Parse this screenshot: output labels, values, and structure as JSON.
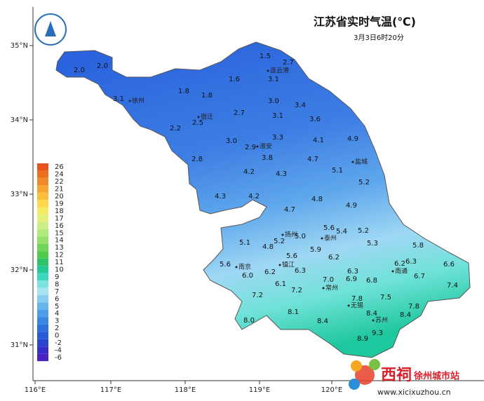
{
  "header": {
    "title": "江苏省实时气温(℃)",
    "subtitle": "3月3日6时20分"
  },
  "axes": {
    "lat": [
      "35°N",
      "34°N",
      "33°N",
      "32°N",
      "31°N"
    ],
    "lon": [
      "116°E",
      "117°E",
      "118°E",
      "119°E",
      "120°E"
    ]
  },
  "legend": {
    "levels": [
      {
        "label": "26",
        "color": "#e8531c"
      },
      {
        "label": "24",
        "color": "#ee6f22"
      },
      {
        "label": "22",
        "color": "#f38a2a"
      },
      {
        "label": "21",
        "color": "#f7a431"
      },
      {
        "label": "20",
        "color": "#fbbf3b"
      },
      {
        "label": "19",
        "color": "#fcd84a"
      },
      {
        "label": "18",
        "color": "#f5ea63"
      },
      {
        "label": "17",
        "color": "#e4f07a"
      },
      {
        "label": "16",
        "color": "#cdee86"
      },
      {
        "label": "15",
        "color": "#b3e87a"
      },
      {
        "label": "14",
        "color": "#95df6a"
      },
      {
        "label": "13",
        "color": "#72d55a"
      },
      {
        "label": "12",
        "color": "#4fcb4d"
      },
      {
        "label": "11",
        "color": "#31c36a"
      },
      {
        "label": "10",
        "color": "#22c896"
      },
      {
        "label": "9",
        "color": "#3fd7bf"
      },
      {
        "label": "8",
        "color": "#7ae3e0"
      },
      {
        "label": "7",
        "color": "#a6e4f3"
      },
      {
        "label": "6",
        "color": "#86cdf0"
      },
      {
        "label": "5",
        "color": "#66b6ec"
      },
      {
        "label": "4",
        "color": "#4d9ee8"
      },
      {
        "label": "3",
        "color": "#3a86e3"
      },
      {
        "label": "2",
        "color": "#2f70dd"
      },
      {
        "label": "0",
        "color": "#2a5bd6"
      },
      {
        "label": "-2",
        "color": "#2a45cf"
      },
      {
        "label": "-4",
        "color": "#3630c9"
      },
      {
        "label": "-6",
        "color": "#4a22c4"
      }
    ]
  },
  "cities": [
    "连云港",
    "徐州",
    "宿迁",
    "淮安",
    "盐城",
    "扬州",
    "泰州",
    "镇江",
    "南京",
    "常州",
    "无锡",
    "苏州",
    "南通"
  ],
  "stations": [
    "1.5",
    "2.7",
    "2.0",
    "2.0",
    "1.6",
    "3.1",
    "1.8",
    "1.8",
    "3.1",
    "3.0",
    "3.4",
    "2.7",
    "3.1",
    "3.6",
    "2.5",
    "2.2",
    "4.9",
    "3.3",
    "4.1",
    "3.0",
    "2.9",
    "3.8",
    "4.7",
    "2.8",
    "5.1",
    "4.2",
    "4.3",
    "5.2",
    "4.3",
    "4.2",
    "4.8",
    "4.9",
    "4.7",
    "5.6",
    "5.4",
    "5.2",
    "5.0",
    "5.2",
    "5.1",
    "5.3",
    "4.8",
    "5.8",
    "5.9",
    "5.6",
    "6.2",
    "6.2",
    "6.3",
    "6.6",
    "5.6",
    "6.0",
    "6.2",
    "6.3",
    "6.3",
    "6.9",
    "6.7",
    "7.0",
    "6.8",
    "6.1",
    "7.2",
    "7.4",
    "7.2",
    "7.5",
    "7.8",
    "7.8",
    "8.1",
    "8.4",
    "8.4",
    "8.0",
    "8.4",
    "9.3",
    "8.9"
  ],
  "watermark": {
    "brand": "西祠",
    "site": "徐州城市站",
    "url": "www.xicixuzhou.cn"
  }
}
